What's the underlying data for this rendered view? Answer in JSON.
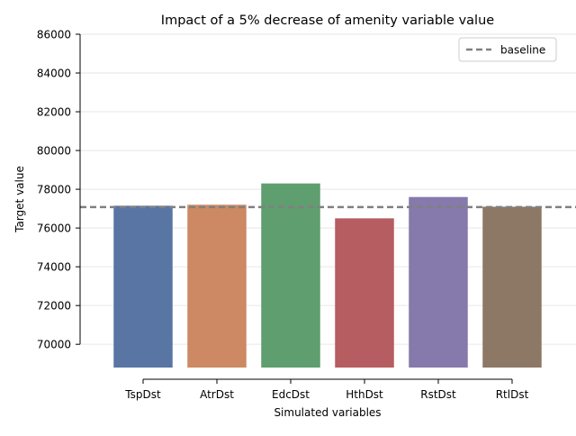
{
  "chart_data": {
    "type": "bar",
    "title": "Impact of a 5% decrease of amenity variable value",
    "xlabel": "Simulated variables",
    "ylabel": "Target value",
    "categories": [
      "TspDst",
      "AtrDst",
      "EdcDst",
      "HthDst",
      "RstDst",
      "RtlDst"
    ],
    "values": [
      77150,
      77200,
      78300,
      76500,
      77600,
      77100
    ],
    "bar_bottom": 68800,
    "bar_colors": [
      "#5875a4",
      "#cc8963",
      "#5f9e6e",
      "#b55d60",
      "#857aab",
      "#8d7866"
    ],
    "ylim": [
      68800,
      86000
    ],
    "yticks": [
      70000,
      72000,
      74000,
      76000,
      78000,
      80000,
      82000,
      84000,
      86000
    ],
    "baseline": {
      "name": "baseline",
      "value": 77080,
      "color": "#808080"
    },
    "grid": "y",
    "legend": "top-right"
  }
}
